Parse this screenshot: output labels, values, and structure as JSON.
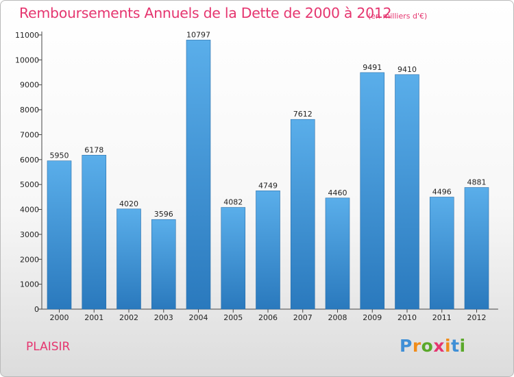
{
  "title": "Remboursements Annuels de la Dette de 2000 à 2012",
  "subtitle": "(en milliers d'€)",
  "city": "PLAISIR",
  "logo": {
    "letters": [
      "P",
      "r",
      "o",
      "x",
      "i",
      "t",
      "i"
    ],
    "colors": [
      "#3f8fd6",
      "#f08c1a",
      "#5aa82a",
      "#e5356f",
      "#f08c1a",
      "#3f8fd6",
      "#5aa82a"
    ]
  },
  "colors": {
    "bar_light": "#5aaeea",
    "bar_dark": "#2a79bd",
    "title": "#e5356f"
  },
  "chart_data": {
    "type": "bar",
    "categories": [
      "2000",
      "2001",
      "2002",
      "2003",
      "2004",
      "2005",
      "2006",
      "2007",
      "2008",
      "2009",
      "2010",
      "2011",
      "2012"
    ],
    "values": [
      5950,
      6178,
      4020,
      3596,
      10797,
      4082,
      4749,
      7612,
      4460,
      9491,
      9410,
      4496,
      4881
    ],
    "value_labels": [
      "5950",
      "6178",
      "4020",
      "3596",
      "10797",
      "4082",
      "4749",
      "7612",
      "4460",
      "9491",
      "9410",
      "4496",
      "4881"
    ],
    "y_ticks": [
      "0",
      "1000",
      "2000",
      "3000",
      "4000",
      "5000",
      "6000",
      "7000",
      "8000",
      "9000",
      "10000",
      "11000"
    ],
    "ylim": [
      0,
      11000
    ],
    "grid": false,
    "xlabel": "",
    "ylabel": ""
  }
}
